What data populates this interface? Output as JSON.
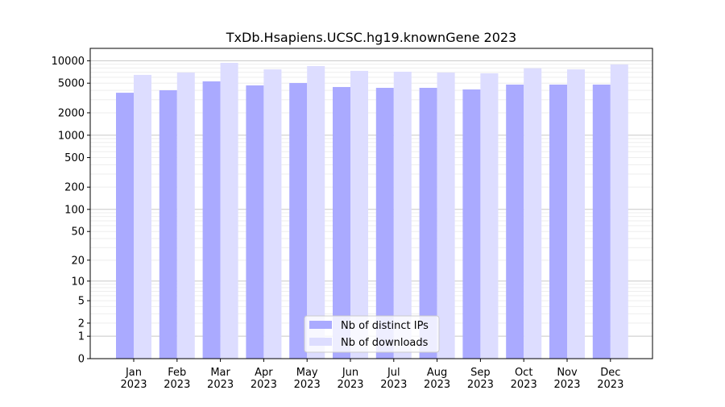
{
  "chart_data": {
    "type": "bar",
    "title": "TxDb.Hsapiens.UCSC.hg19.knownGene 2023",
    "xlabel": "",
    "ylabel": "",
    "yscale": "symlog (log10(1+y))",
    "ylim": [
      0,
      13000
    ],
    "yticks": [
      0,
      1,
      2,
      5,
      10,
      20,
      50,
      100,
      200,
      500,
      1000,
      2000,
      5000,
      10000
    ],
    "grid": true,
    "legend_position": "bottom-center",
    "categories": [
      "Jan\n2023",
      "Feb\n2023",
      "Mar\n2023",
      "Apr\n2023",
      "May\n2023",
      "Jun\n2023",
      "Jul\n2023",
      "Aug\n2023",
      "Sep\n2023",
      "Oct\n2023",
      "Nov\n2023",
      "Dec\n2023"
    ],
    "series": [
      {
        "name": "Nb of distinct IPs",
        "color": "#aaaaff",
        "values": [
          3720,
          4020,
          5290,
          4670,
          5030,
          4440,
          4330,
          4330,
          4120,
          4790,
          4790,
          4790
        ]
      },
      {
        "name": "Nb of downloads",
        "color": "#ddddff",
        "values": [
          6460,
          6950,
          9370,
          7670,
          8490,
          7310,
          7130,
          6950,
          6780,
          7930,
          7670,
          8910
        ]
      }
    ]
  }
}
